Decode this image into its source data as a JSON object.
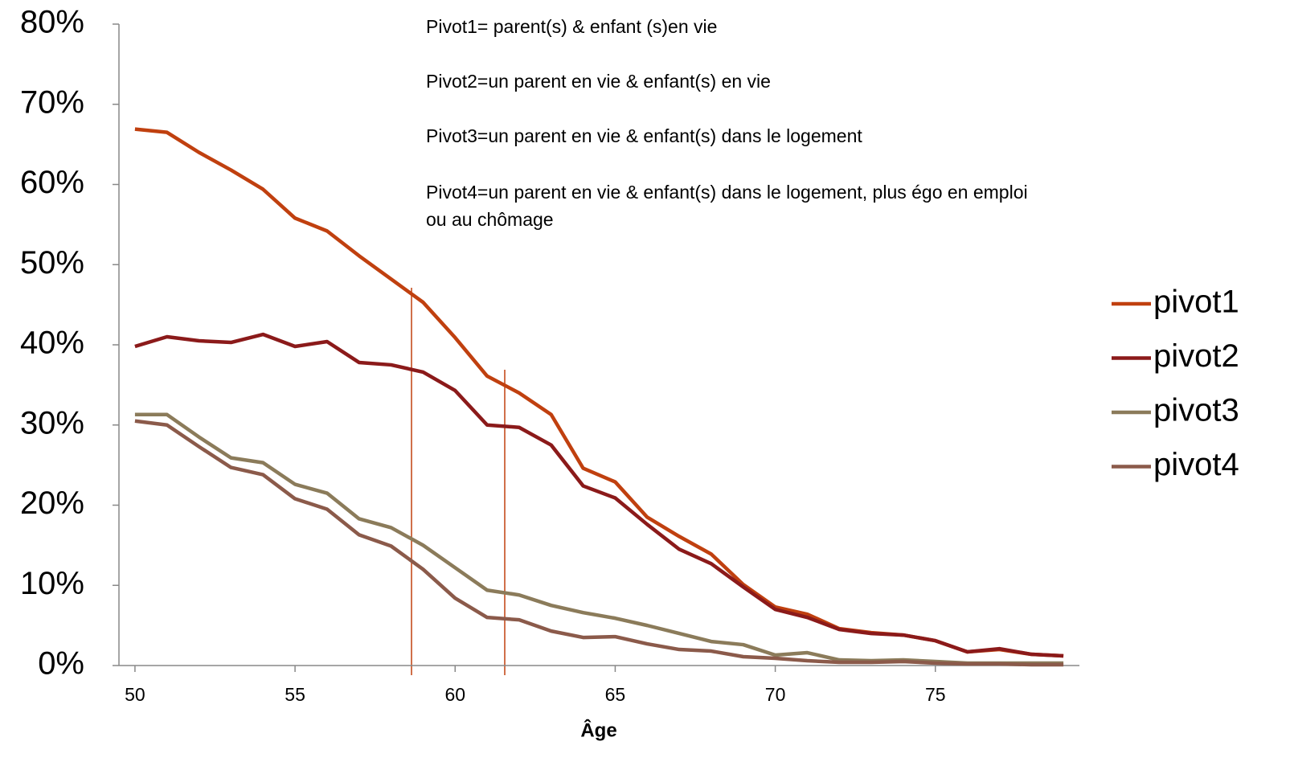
{
  "chart_data": {
    "type": "line",
    "xlabel": "Âge",
    "annotations": [
      "Pivot1= parent(s)  & enfant (s)en vie",
      "Pivot2=un parent en vie & enfant(s) en vie",
      "Pivot3=un parent en vie & enfant(s) dans le logement",
      "Pivot4=un parent en vie & enfant(s) dans le logement, plus égo en emploi",
      "ou au chômage"
    ],
    "x": [
      50,
      51,
      52,
      53,
      54,
      55,
      56,
      57,
      58,
      59,
      60,
      61,
      62,
      63,
      64,
      65,
      66,
      67,
      68,
      69,
      70,
      71,
      72,
      73,
      74,
      75,
      76,
      77,
      78,
      79
    ],
    "xlim": [
      49.5,
      79.5
    ],
    "xticks": [
      50,
      55,
      60,
      65,
      70,
      75
    ],
    "ylim": [
      0,
      80
    ],
    "yticks": [
      {
        "value": 0,
        "label": "0%"
      },
      {
        "value": 10,
        "label": "10%"
      },
      {
        "value": 20,
        "label": "20%"
      },
      {
        "value": 30,
        "label": "30%"
      },
      {
        "value": 40,
        "label": "40%"
      },
      {
        "value": 50,
        "label": "50%"
      },
      {
        "value": 60,
        "label": "60%"
      },
      {
        "value": 70,
        "label": "70%"
      },
      {
        "value": 80,
        "label": "80%"
      }
    ],
    "legend": "right",
    "series": [
      {
        "name": "pivot1",
        "color": "#c0400f",
        "values": [
          66.9,
          66.5,
          64.0,
          61.8,
          59.4,
          55.8,
          54.2,
          51.1,
          48.2,
          45.3,
          40.9,
          36.1,
          34.0,
          31.3,
          24.6,
          22.9,
          18.5,
          16.1,
          13.9,
          10.1,
          7.3,
          6.4,
          4.6,
          4.1,
          3.8,
          3.1,
          1.7,
          2.0,
          1.4,
          1.2
        ]
      },
      {
        "name": "pivot2",
        "color": "#8b1a1a",
        "values": [
          39.8,
          41.0,
          40.5,
          40.3,
          41.3,
          39.8,
          40.4,
          37.8,
          37.5,
          36.6,
          34.3,
          30.0,
          29.7,
          27.5,
          22.4,
          20.9,
          17.6,
          14.5,
          12.7,
          9.8,
          7.0,
          6.0,
          4.5,
          4.0,
          3.8,
          3.1,
          1.7,
          2.1,
          1.4,
          1.2
        ]
      },
      {
        "name": "pivot3",
        "color": "#8b7b5a",
        "values": [
          31.3,
          31.3,
          28.5,
          25.9,
          25.3,
          22.6,
          21.5,
          18.3,
          17.2,
          15.0,
          12.2,
          9.4,
          8.8,
          7.5,
          6.6,
          5.9,
          5.0,
          4.0,
          3.0,
          2.6,
          1.3,
          1.6,
          0.7,
          0.6,
          0.7,
          0.5,
          0.3,
          0.3,
          0.3,
          0.3
        ]
      },
      {
        "name": "pivot4",
        "color": "#8b5a4a",
        "values": [
          30.5,
          30.0,
          27.3,
          24.7,
          23.8,
          20.8,
          19.5,
          16.3,
          14.9,
          12.0,
          8.4,
          6.0,
          5.7,
          4.3,
          3.5,
          3.6,
          2.7,
          2.0,
          1.8,
          1.1,
          0.9,
          0.6,
          0.4,
          0.4,
          0.5,
          0.3,
          0.2,
          0.2,
          0.1,
          0.1
        ]
      }
    ]
  }
}
